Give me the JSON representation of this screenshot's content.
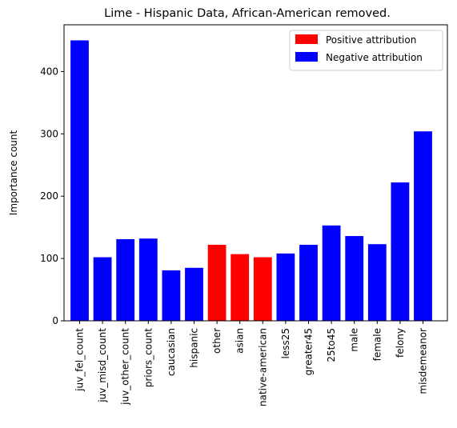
{
  "chart_data": {
    "type": "bar",
    "title": "Lime - Hispanic Data, African-American removed.",
    "xlabel": "",
    "ylabel": "Importance count",
    "ylim": [
      0,
      475
    ],
    "yticks": [
      0,
      100,
      200,
      300,
      400
    ],
    "categories": [
      "juv_fel_count",
      "juv_misd_count",
      "juv_other_count",
      "priors_count",
      "caucasian",
      "hispanic",
      "other",
      "asian",
      "native-american",
      "less25",
      "greater45",
      "25to45",
      "male",
      "female",
      "felony",
      "misdemeanor"
    ],
    "values": [
      450,
      102,
      131,
      132,
      81,
      85,
      122,
      107,
      102,
      108,
      122,
      153,
      136,
      123,
      222,
      304
    ],
    "attribution": [
      "negative",
      "negative",
      "negative",
      "negative",
      "negative",
      "negative",
      "positive",
      "positive",
      "positive",
      "negative",
      "negative",
      "negative",
      "negative",
      "negative",
      "negative",
      "negative"
    ],
    "legend": {
      "placement": "top-right",
      "entries": [
        {
          "key": "positive",
          "label": "Positive attribution",
          "color": "#ff0000"
        },
        {
          "key": "negative",
          "label": "Negative attribution",
          "color": "#0000ff"
        }
      ]
    },
    "grid": false
  }
}
